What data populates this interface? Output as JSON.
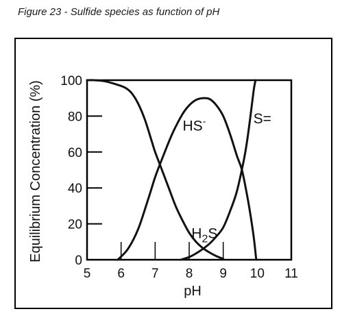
{
  "figure": {
    "caption": "Figure 23 - Sulfide species as function of pH"
  },
  "chart_data": {
    "type": "line",
    "title": "",
    "xlabel": "pH",
    "ylabel": "Equilibrium Concentration (%)",
    "xlim": [
      5,
      11
    ],
    "ylim": [
      0,
      100
    ],
    "xticks": [
      "5",
      "6",
      "7",
      "8",
      "9",
      "10",
      "11"
    ],
    "yticks": [
      "0",
      "20",
      "40",
      "60",
      "80",
      "100"
    ],
    "grid": false,
    "series": [
      {
        "name": "H2S",
        "label_parts": {
          "main": "H",
          "sub": "2",
          "tail": "S"
        },
        "x": [
          5.0,
          5.2,
          5.5,
          5.8,
          6.1,
          6.3,
          6.5,
          6.7,
          6.9,
          7.0,
          7.2,
          7.4,
          7.6,
          7.8,
          8.0,
          8.2,
          8.4,
          8.6,
          8.8,
          9.0
        ],
        "y": [
          100,
          100,
          99.5,
          98,
          96,
          93,
          87,
          78,
          66,
          60,
          50,
          40,
          30,
          22,
          15,
          10,
          6.5,
          4,
          2,
          0.5
        ]
      },
      {
        "name": "HS-",
        "label_parts": {
          "main": "HS",
          "sup": "-"
        },
        "x": [
          5.9,
          6.2,
          6.5,
          6.8,
          7.0,
          7.2,
          7.5,
          7.8,
          8.0,
          8.2,
          8.4,
          8.6,
          8.8,
          9.0,
          9.2,
          9.4,
          9.55,
          9.7,
          9.8,
          9.9,
          9.97
        ],
        "y": [
          0,
          6,
          17,
          34,
          46,
          56,
          70,
          81,
          86,
          89,
          90,
          89.5,
          86,
          80,
          70,
          58,
          50,
          36,
          25,
          12,
          0
        ]
      },
      {
        "name": "S=",
        "label_parts": {
          "main": "S="
        },
        "x": [
          7.75,
          8.0,
          8.2,
          8.4,
          8.6,
          8.8,
          9.0,
          9.2,
          9.4,
          9.6,
          9.7,
          9.8,
          9.9,
          9.95
        ],
        "y": [
          0,
          1.5,
          3.5,
          6,
          9,
          13,
          18,
          27,
          38,
          55,
          66,
          80,
          95,
          100
        ]
      }
    ],
    "minor_ticks_x": [
      6.0,
      7.0,
      8.0,
      9.0
    ]
  }
}
